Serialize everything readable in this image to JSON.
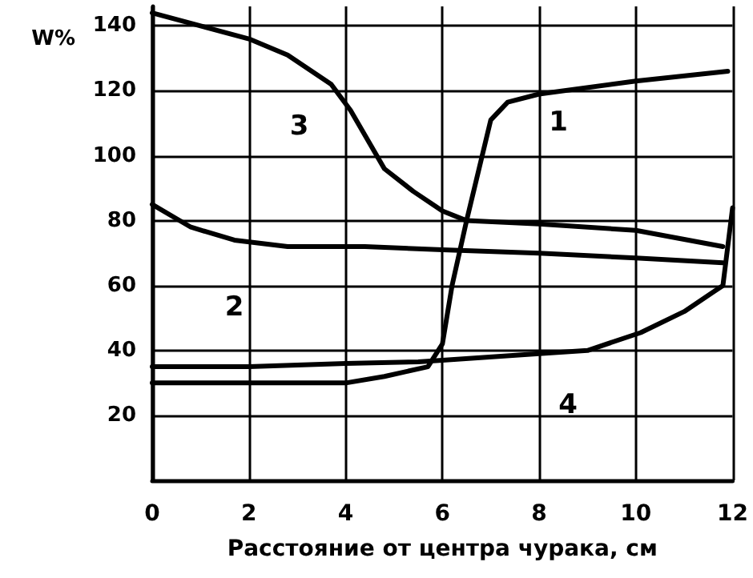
{
  "chart_data": {
    "type": "line",
    "xlabel": "Расстояние от центра чурака, см",
    "ylabel": "W%",
    "xlim": [
      0,
      12
    ],
    "xticks": [
      0,
      2,
      4,
      6,
      8,
      10,
      12
    ],
    "ylim": [
      0,
      146
    ],
    "yticks": [
      20,
      40,
      60,
      80,
      100,
      120,
      140
    ],
    "grid": true,
    "marker": "none",
    "line_style": "solid",
    "series": [
      {
        "name": "1",
        "color": "#000000",
        "x": [
          0,
          2,
          4,
          4.8,
          5.7,
          6,
          6.2,
          6.5,
          7,
          7.35,
          8,
          10,
          11.9
        ],
        "values": [
          30,
          30,
          30,
          32,
          35,
          42,
          60,
          80,
          111,
          116.5,
          119,
          123,
          126
        ]
      },
      {
        "name": "2",
        "color": "#000000",
        "x": [
          0,
          0.8,
          1.7,
          2.8,
          4.4,
          6,
          8,
          10,
          11.8
        ],
        "values": [
          85,
          78,
          74,
          72,
          72,
          71,
          70,
          68.5,
          67
        ]
      },
      {
        "name": "3",
        "color": "#000000",
        "x": [
          0,
          2,
          2.8,
          3.7,
          4.1,
          4.8,
          5.4,
          6,
          6.5,
          8,
          10,
          11.8
        ],
        "values": [
          144,
          136,
          131,
          122,
          114,
          96,
          89,
          83,
          80,
          79,
          77,
          72
        ]
      },
      {
        "name": "4",
        "color": "#000000",
        "x": [
          0,
          2,
          4,
          5.5,
          6,
          8,
          9,
          10.1,
          11,
          11.6,
          11.8,
          12
        ],
        "values": [
          35,
          35,
          36,
          36.5,
          37,
          39,
          40,
          45.5,
          52,
          58,
          60,
          84
        ]
      }
    ]
  }
}
